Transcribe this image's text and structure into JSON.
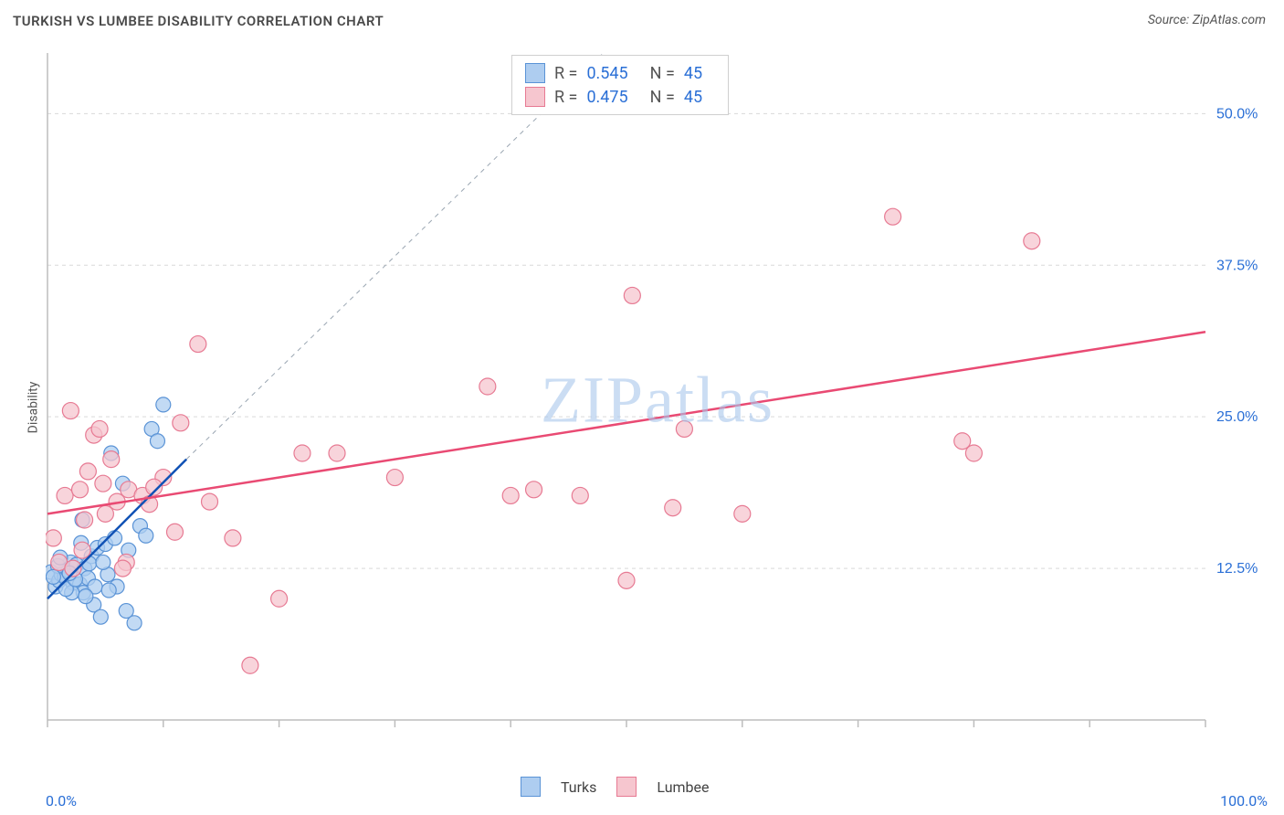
{
  "title": "TURKISH VS LUMBEE DISABILITY CORRELATION CHART",
  "source": "Source: ZipAtlas.com",
  "watermark": "ZIPatlas",
  "ylabel": "Disability",
  "chart": {
    "type": "scatter",
    "background_color": "#ffffff",
    "grid_color": "#d9d9d9",
    "axis_color": "#bdbdbd",
    "tick_label_color": "#2a6fd6",
    "xlim": [
      0,
      100
    ],
    "ylim": [
      0,
      55
    ],
    "x_ticks": [
      0,
      10,
      20,
      30,
      40,
      50,
      60,
      70,
      80,
      90,
      100
    ],
    "x_tick_labels": {
      "0": "0.0%",
      "100": "100.0%"
    },
    "y_gridlines": [
      12.5,
      25.0,
      37.5,
      50.0
    ],
    "y_tick_labels": [
      "12.5%",
      "25.0%",
      "37.5%",
      "50.0%"
    ],
    "series": [
      {
        "name": "Turks",
        "marker_fill": "#aecdf0",
        "marker_stroke": "#5a93d6",
        "marker_radius": 8,
        "R": "0.545",
        "N": "45",
        "trend": {
          "x1": 0,
          "y1": 10.0,
          "x2": 12,
          "y2": 21.5,
          "color": "#1152b5",
          "width": 2.5,
          "extend_dashed_to": {
            "x": 48,
            "y": 55
          }
        },
        "points": [
          [
            0.3,
            12.2
          ],
          [
            0.7,
            11.0
          ],
          [
            1.0,
            11.5
          ],
          [
            1.2,
            12.0
          ],
          [
            1.5,
            11.8
          ],
          [
            1.8,
            12.3
          ],
          [
            2.0,
            13.0
          ],
          [
            2.2,
            11.3
          ],
          [
            2.5,
            12.8
          ],
          [
            2.8,
            11.2
          ],
          [
            3.0,
            16.5
          ],
          [
            3.2,
            12.5
          ],
          [
            3.5,
            11.7
          ],
          [
            3.8,
            13.5
          ],
          [
            4.0,
            9.5
          ],
          [
            4.3,
            14.2
          ],
          [
            4.6,
            8.5
          ],
          [
            5.0,
            14.5
          ],
          [
            5.2,
            12.0
          ],
          [
            5.5,
            22.0
          ],
          [
            5.8,
            15.0
          ],
          [
            6.0,
            11.0
          ],
          [
            6.5,
            19.5
          ],
          [
            6.8,
            9.0
          ],
          [
            7.0,
            14.0
          ],
          [
            7.5,
            8.0
          ],
          [
            8.0,
            16.0
          ],
          [
            8.5,
            15.2
          ],
          [
            9.0,
            24.0
          ],
          [
            9.5,
            23.0
          ],
          [
            10.0,
            26.0
          ],
          [
            3.1,
            10.5
          ],
          [
            2.1,
            10.5
          ],
          [
            1.6,
            10.8
          ],
          [
            0.9,
            12.7
          ],
          [
            4.1,
            11.0
          ],
          [
            5.3,
            10.7
          ],
          [
            1.1,
            13.4
          ],
          [
            2.9,
            14.6
          ],
          [
            3.6,
            12.9
          ],
          [
            0.5,
            11.8
          ],
          [
            2.4,
            11.6
          ],
          [
            3.3,
            10.2
          ],
          [
            4.8,
            13.0
          ],
          [
            1.9,
            12.1
          ]
        ]
      },
      {
        "name": "Lumbee",
        "marker_fill": "#f6c6cf",
        "marker_stroke": "#e77a93",
        "marker_radius": 9,
        "R": "0.475",
        "N": "45",
        "trend": {
          "x1": 0,
          "y1": 17.0,
          "x2": 100,
          "y2": 32.0,
          "color": "#e94a73",
          "width": 2.5
        },
        "points": [
          [
            0.5,
            15.0
          ],
          [
            1.0,
            13.0
          ],
          [
            1.5,
            18.5
          ],
          [
            2.0,
            25.5
          ],
          [
            2.2,
            12.5
          ],
          [
            2.8,
            19.0
          ],
          [
            3.0,
            14.0
          ],
          [
            3.2,
            16.5
          ],
          [
            3.5,
            20.5
          ],
          [
            4.0,
            23.5
          ],
          [
            4.5,
            24.0
          ],
          [
            4.8,
            19.5
          ],
          [
            5.0,
            17.0
          ],
          [
            5.5,
            21.5
          ],
          [
            6.0,
            18.0
          ],
          [
            6.8,
            13.0
          ],
          [
            7.0,
            19.0
          ],
          [
            8.2,
            18.5
          ],
          [
            8.8,
            17.8
          ],
          [
            10.0,
            20.0
          ],
          [
            11.0,
            15.5
          ],
          [
            11.5,
            24.5
          ],
          [
            13.0,
            31.0
          ],
          [
            14.0,
            18.0
          ],
          [
            16.0,
            15.0
          ],
          [
            17.5,
            4.5
          ],
          [
            20.0,
            10.0
          ],
          [
            22.0,
            22.0
          ],
          [
            25.0,
            22.0
          ],
          [
            30.0,
            20.0
          ],
          [
            38.0,
            27.5
          ],
          [
            40.0,
            18.5
          ],
          [
            42.0,
            19.0
          ],
          [
            46.0,
            18.5
          ],
          [
            50.0,
            11.5
          ],
          [
            50.5,
            35.0
          ],
          [
            54.0,
            17.5
          ],
          [
            55.0,
            24.0
          ],
          [
            60.0,
            17.0
          ],
          [
            73.0,
            41.5
          ],
          [
            79.0,
            23.0
          ],
          [
            80.0,
            22.0
          ],
          [
            85.0,
            39.5
          ],
          [
            9.2,
            19.2
          ],
          [
            6.5,
            12.5
          ]
        ]
      }
    ],
    "stats_box_labels": {
      "R": "R =",
      "N": "N ="
    }
  },
  "legend": {
    "items": [
      {
        "name": "Turks",
        "fill": "#aecdf0",
        "stroke": "#5a93d6"
      },
      {
        "name": "Lumbee",
        "fill": "#f6c6cf",
        "stroke": "#e77a93"
      }
    ]
  }
}
